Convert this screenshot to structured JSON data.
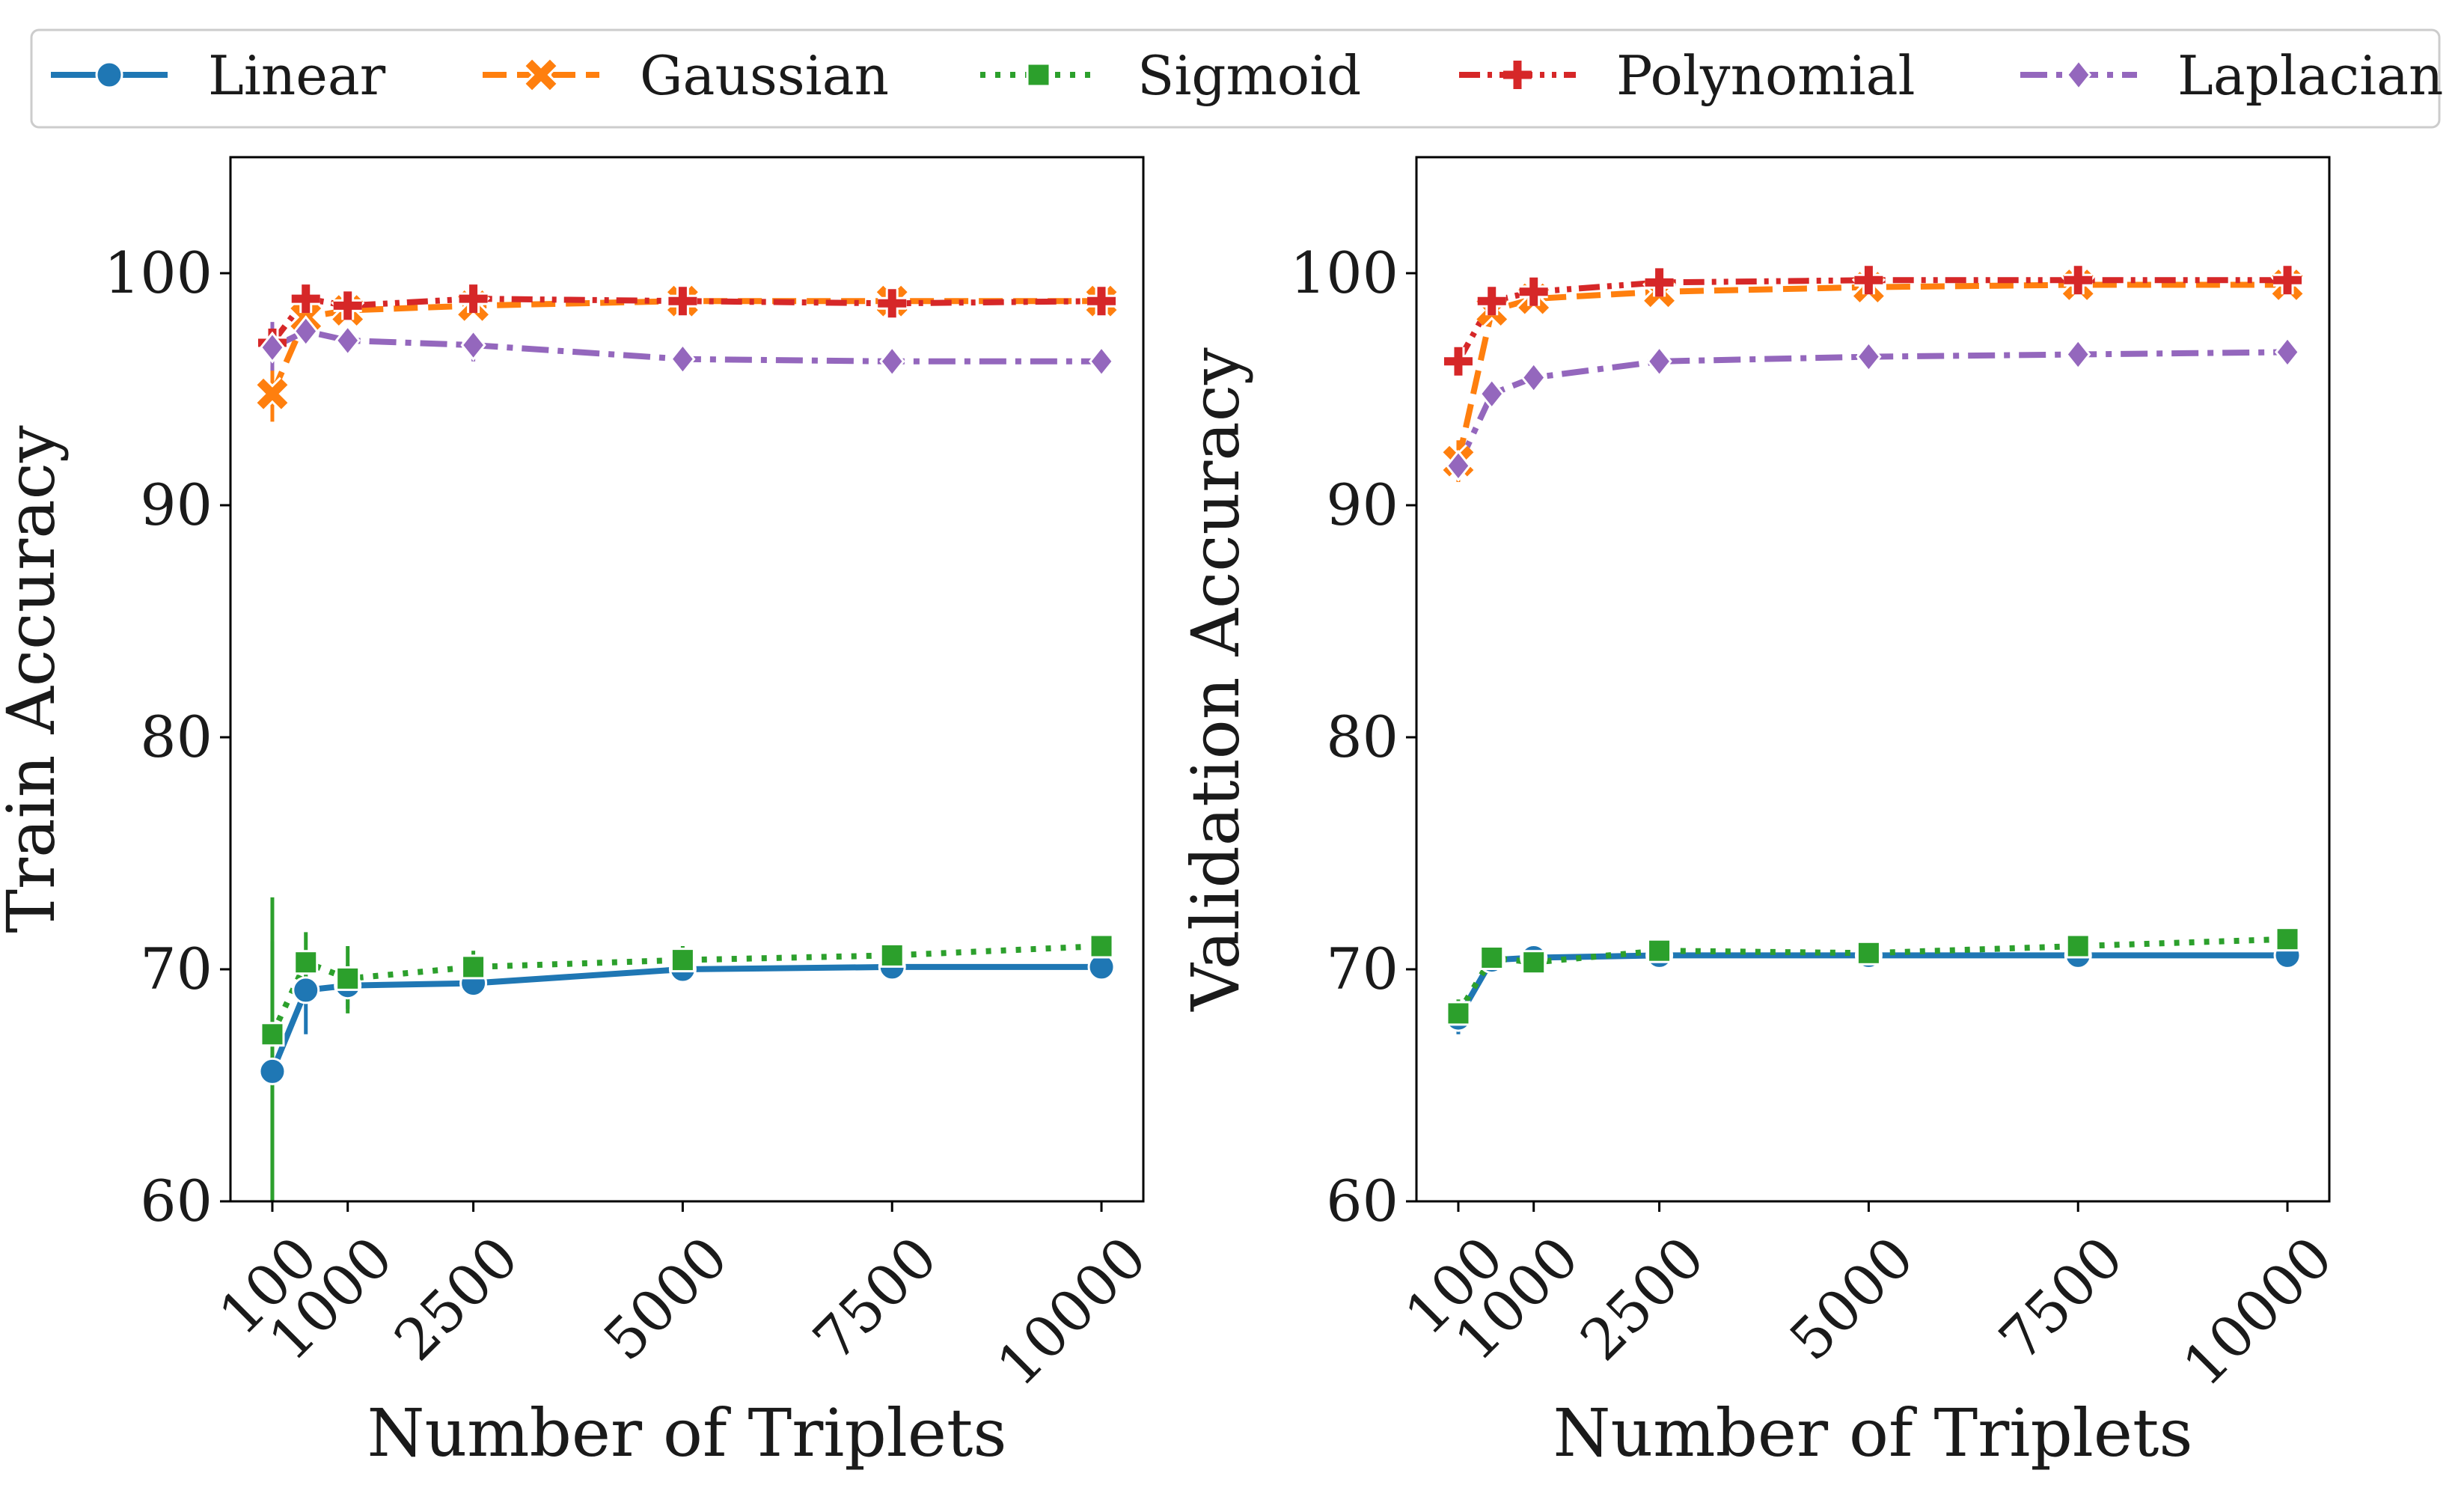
{
  "legend": {
    "entries": [
      {
        "name": "Linear",
        "color": "#1f77b4",
        "dash": "solid",
        "marker": "circle"
      },
      {
        "name": "Gaussian",
        "color": "#ff7f0e",
        "dash": "dashed",
        "marker": "x"
      },
      {
        "name": "Sigmoid",
        "color": "#2ca02c",
        "dash": "dotted",
        "marker": "square"
      },
      {
        "name": "Polynomial",
        "color": "#d62728",
        "dash": "dashdotdot",
        "marker": "plus"
      },
      {
        "name": "Laplacian",
        "color": "#9467bd",
        "dash": "dashdot",
        "marker": "diamond"
      }
    ]
  },
  "chart_data": [
    {
      "type": "line",
      "title": "",
      "xlabel": "Number of Triplets",
      "ylabel": "Train Accuracy",
      "xlim": [
        -400,
        10500
      ],
      "ylim": [
        60,
        105
      ],
      "xticks": [
        100,
        1000,
        2500,
        5000,
        7500,
        10000
      ],
      "xtick_labels": [
        "100",
        "1000",
        "2500",
        "5000",
        "7500",
        "10000"
      ],
      "yticks": [
        60,
        70,
        80,
        90,
        100
      ],
      "ytick_labels": [
        "60",
        "70",
        "80",
        "90",
        "100"
      ],
      "x": [
        100,
        500,
        1000,
        2500,
        5000,
        7500,
        10000
      ],
      "series": [
        {
          "name": "Linear",
          "values": [
            65.6,
            69.1,
            69.3,
            69.4,
            70.0,
            70.1,
            70.1
          ],
          "err": [
            [
              60.0,
              71.2
            ],
            [
              67.2,
              70.6
            ],
            [
              68.3,
              70.2
            ],
            null,
            null,
            null,
            null
          ]
        },
        {
          "name": "Gaussian",
          "values": [
            94.8,
            98.1,
            98.4,
            98.6,
            98.8,
            98.8,
            98.8
          ],
          "err": [
            [
              93.6,
              96.0
            ],
            null,
            null,
            null,
            null,
            null,
            null
          ]
        },
        {
          "name": "Sigmoid",
          "values": [
            67.2,
            70.3,
            69.6,
            70.1,
            70.4,
            70.6,
            71.0
          ],
          "err": [
            [
              60.0,
              73.1
            ],
            [
              68.9,
              71.6
            ],
            [
              68.1,
              71.0
            ],
            [
              69.5,
              70.8
            ],
            [
              69.9,
              71.0
            ],
            null,
            [
              70.5,
              71.4
            ]
          ]
        },
        {
          "name": "Polynomial",
          "values": [
            97.0,
            98.9,
            98.6,
            98.9,
            98.8,
            98.7,
            98.8
          ],
          "err": [
            null,
            null,
            null,
            null,
            null,
            null,
            null
          ]
        },
        {
          "name": "Laplacian",
          "values": [
            96.8,
            97.5,
            97.1,
            96.9,
            96.3,
            96.2,
            96.2
          ],
          "err": [
            [
              95.8,
              97.9
            ],
            null,
            null,
            [
              96.2,
              97.5
            ],
            null,
            null,
            null
          ]
        }
      ]
    },
    {
      "type": "line",
      "title": "",
      "xlabel": "Number of Triplets",
      "ylabel": "Validation Accuracy",
      "xlim": [
        -400,
        10500
      ],
      "ylim": [
        60,
        105
      ],
      "xticks": [
        100,
        1000,
        2500,
        5000,
        7500,
        10000
      ],
      "xtick_labels": [
        "100",
        "1000",
        "2500",
        "5000",
        "7500",
        "10000"
      ],
      "yticks": [
        60,
        70,
        80,
        90,
        100
      ],
      "ytick_labels": [
        "60",
        "70",
        "80",
        "90",
        "100"
      ],
      "x": [
        100,
        500,
        1000,
        2500,
        5000,
        7500,
        10000
      ],
      "series": [
        {
          "name": "Linear",
          "values": [
            67.9,
            70.4,
            70.5,
            70.6,
            70.6,
            70.6,
            70.6
          ],
          "err": [
            [
              67.2,
              68.6
            ],
            null,
            null,
            null,
            null,
            null,
            null
          ]
        },
        {
          "name": "Gaussian",
          "values": [
            91.9,
            98.4,
            98.9,
            99.2,
            99.4,
            99.5,
            99.5
          ],
          "err": [
            [
              91.0,
              92.8
            ],
            null,
            null,
            null,
            null,
            null,
            null
          ]
        },
        {
          "name": "Sigmoid",
          "values": [
            68.1,
            70.5,
            70.3,
            70.8,
            70.7,
            71.0,
            71.3
          ],
          "err": [
            [
              67.5,
              68.7
            ],
            null,
            null,
            null,
            null,
            null,
            null
          ]
        },
        {
          "name": "Polynomial",
          "values": [
            96.2,
            98.8,
            99.2,
            99.6,
            99.7,
            99.7,
            99.7
          ],
          "err": [
            null,
            null,
            null,
            null,
            null,
            null,
            null
          ]
        },
        {
          "name": "Laplacian",
          "values": [
            91.7,
            94.8,
            95.5,
            96.2,
            96.4,
            96.5,
            96.6
          ],
          "err": [
            null,
            null,
            null,
            null,
            null,
            null,
            null
          ]
        }
      ]
    }
  ]
}
